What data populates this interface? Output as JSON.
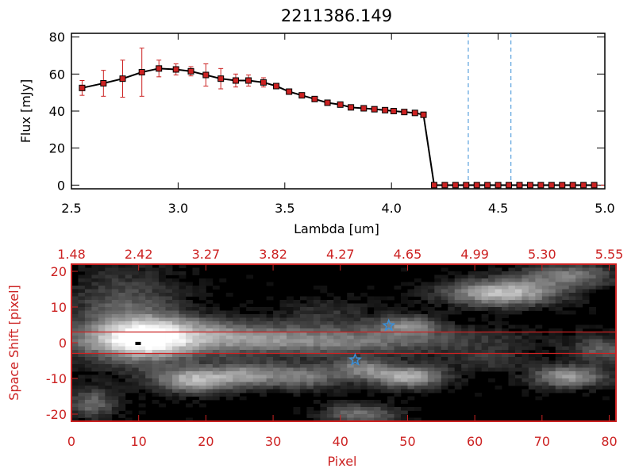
{
  "title": "2211386.149",
  "chart_data": [
    {
      "type": "line",
      "title": "2211386.149",
      "xlabel": "Lambda [um]",
      "ylabel": "Flux [mJy]",
      "xlim": [
        2.5,
        5.0
      ],
      "ylim": [
        -2,
        82
      ],
      "x_ticks": [
        "2.5",
        "3.0",
        "3.5",
        "4.0",
        "4.5",
        "5.0"
      ],
      "y_ticks": [
        "0",
        "20",
        "40",
        "60",
        "80"
      ],
      "line_color": "#000000",
      "marker_color": "#cc2222",
      "vlines": [
        4.36,
        4.56
      ],
      "vline_color": "#3a8fd8",
      "grid": false,
      "series": [
        {
          "x": [
            2.55,
            2.65,
            2.74,
            2.83,
            2.91,
            2.99,
            3.06,
            3.13,
            3.2,
            3.27,
            3.33,
            3.4,
            3.46,
            3.52,
            3.58,
            3.64,
            3.7,
            3.76,
            3.81,
            3.87,
            3.92,
            3.97,
            4.01,
            4.06,
            4.11,
            4.15,
            4.2,
            4.25,
            4.3,
            4.35,
            4.4,
            4.45,
            4.5,
            4.55,
            4.6,
            4.65,
            4.7,
            4.75,
            4.8,
            4.85,
            4.9,
            4.95
          ],
          "y": [
            52.5,
            55.0,
            57.5,
            61.0,
            63.0,
            62.5,
            61.5,
            59.5,
            57.5,
            56.5,
            56.5,
            55.5,
            53.5,
            50.5,
            48.5,
            46.5,
            44.5,
            43.5,
            42.0,
            41.5,
            41.0,
            40.5,
            40.0,
            39.5,
            39.0,
            38.0,
            0,
            0,
            0,
            0,
            0,
            0,
            0,
            0,
            0,
            0,
            0,
            0,
            0,
            0,
            0,
            0
          ],
          "yerr": [
            4.0,
            7.0,
            10.0,
            13.0,
            4.5,
            3.0,
            2.5,
            6.0,
            5.5,
            3.5,
            3.0,
            2.5,
            1.5,
            1.5,
            1.0,
            0.5,
            0.5,
            0.5,
            0.5,
            0.5,
            0.5,
            0.5,
            0.5,
            0.5,
            0.5,
            0.5,
            0,
            0,
            0,
            0,
            0,
            0,
            0,
            0,
            0,
            0,
            0,
            0,
            0,
            0,
            0,
            0
          ]
        }
      ]
    },
    {
      "type": "heatmap",
      "xlabel": "Pixel",
      "ylabel": "Space Shift [pixel]",
      "xlim": [
        0,
        81
      ],
      "ylim": [
        -22,
        22
      ],
      "x_ticks": [
        "0",
        "10",
        "20",
        "30",
        "40",
        "50",
        "60",
        "70",
        "80"
      ],
      "y_ticks": [
        "-20",
        "-10",
        "0",
        "10",
        "20"
      ],
      "top_axis_ticks": [
        "1.48",
        "2.42",
        "3.27",
        "3.82",
        "4.27",
        "4.65",
        "4.99",
        "5.30",
        "5.55"
      ],
      "axis_color": "#cc2222",
      "hlines": [
        3,
        -3
      ],
      "markers": [
        {
          "x": 47.2,
          "y": 4.8,
          "shape": "star",
          "color": "#3a8fd8"
        },
        {
          "x": 42.2,
          "y": -4.8,
          "shape": "star",
          "color": "#3a8fd8"
        }
      ],
      "features": [
        {
          "x": 30,
          "y": 0.5,
          "sx": 22,
          "sy": 2.8,
          "amp": 0.55
        },
        {
          "x": 11,
          "y": 0.5,
          "sx": 5,
          "sy": 4.5,
          "amp": 0.55
        },
        {
          "x": 8,
          "y": 8,
          "sx": 6,
          "sy": 9,
          "amp": 0.35
        },
        {
          "x": 19,
          "y": 4.5,
          "sx": 8,
          "sy": 2.5,
          "amp": 0.25
        },
        {
          "x": 64,
          "y": 14,
          "sx": 6,
          "sy": 2.6,
          "amp": 0.75
        },
        {
          "x": 74,
          "y": 19,
          "sx": 5,
          "sy": 2.5,
          "amp": 0.45
        },
        {
          "x": 50,
          "y": -9.5,
          "sx": 4,
          "sy": 2.2,
          "amp": 0.7
        },
        {
          "x": 50,
          "y": 5,
          "sx": 3.5,
          "sy": 2,
          "amp": 0.45
        },
        {
          "x": 18,
          "y": -10.5,
          "sx": 4,
          "sy": 2.5,
          "amp": 0.65
        },
        {
          "x": 26,
          "y": -9,
          "sx": 4,
          "sy": 2.5,
          "amp": 0.5
        },
        {
          "x": 35,
          "y": -9.5,
          "sx": 4,
          "sy": 2.5,
          "amp": 0.45
        },
        {
          "x": 43,
          "y": -7,
          "sx": 3,
          "sy": 2,
          "amp": 0.4
        },
        {
          "x": 43,
          "y": -20,
          "sx": 4,
          "sy": 2,
          "amp": 0.45
        },
        {
          "x": 74,
          "y": -9.5,
          "sx": 4,
          "sy": 2.2,
          "amp": 0.6
        },
        {
          "x": 79,
          "y": -2,
          "sx": 3,
          "sy": 2.5,
          "amp": 0.35
        },
        {
          "x": 3,
          "y": -17,
          "sx": 2.5,
          "sy": 3,
          "amp": 0.4
        },
        {
          "x": 62,
          "y": -5,
          "sx": 4,
          "sy": 2,
          "amp": 0.2
        },
        {
          "x": 38,
          "y": 8,
          "sx": 5,
          "sy": 3,
          "amp": 0.18
        }
      ],
      "hot_pixel": {
        "x": 9.5,
        "y": -0.2
      }
    }
  ]
}
